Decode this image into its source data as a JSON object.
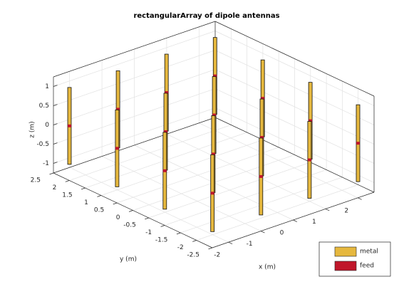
{
  "chart_data": {
    "type": "antenna3d",
    "title": "rectangularArray of dipole antennas",
    "xlabel": "x (m)",
    "ylabel": "y (m)",
    "zlabel": "z (m)",
    "x": [
      -2.25,
      -2.25,
      -2.25,
      -2.25,
      -0.75,
      -0.75,
      -0.75,
      -0.75,
      0.75,
      0.75,
      0.75,
      0.75,
      2.25,
      2.25,
      2.25,
      2.25
    ],
    "y": [
      2.25,
      0.75,
      -0.75,
      -2.25,
      2.25,
      0.75,
      -0.75,
      -2.25,
      2.25,
      0.75,
      -0.75,
      -2.25,
      2.25,
      0.75,
      -0.75,
      -2.25
    ],
    "length": 2,
    "xlim": [
      -2.5,
      2.5
    ],
    "ylim": [
      -2.5,
      2.5
    ],
    "zlim": [
      -1.25,
      1.25
    ],
    "xticks": [
      -2,
      -1,
      0,
      1,
      2
    ],
    "yticks": [
      -2.5,
      -2,
      -1.5,
      -1,
      -0.5,
      0,
      0.5,
      1,
      1.5,
      2,
      2.5
    ],
    "zticks": [
      -1,
      -0.5,
      0,
      0.5,
      1
    ],
    "grid": true,
    "legend": [
      {
        "name": "metal",
        "color": "#e6b83e"
      },
      {
        "name": "feed",
        "color": "#c0172b"
      }
    ],
    "legend_position": "southeast"
  }
}
